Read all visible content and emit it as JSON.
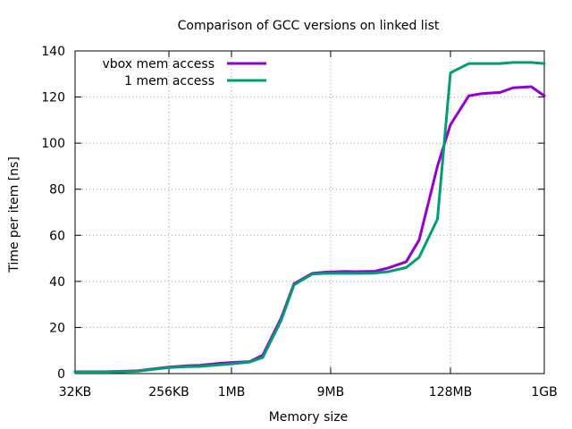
{
  "chart_data": {
    "type": "line",
    "title": "Comparison of GCC versions on linked list",
    "xlabel": "Memory size",
    "ylabel": "Time per item [ns]",
    "x_scale": "log2",
    "xlim": [
      "32KB",
      "1GB"
    ],
    "ylim": [
      0,
      140
    ],
    "grid": true,
    "legend_position": "top-left",
    "x_ticks": [
      {
        "label": "32KB",
        "bytes_kb": 32
      },
      {
        "label": "256KB",
        "bytes_kb": 256
      },
      {
        "label": "1MB",
        "bytes_kb": 1024
      },
      {
        "label": "9MB",
        "bytes_kb": 9216
      },
      {
        "label": "128MB",
        "bytes_kb": 131072
      },
      {
        "label": "1GB",
        "bytes_kb": 1048576
      }
    ],
    "y_ticks": [
      0,
      20,
      40,
      60,
      80,
      100,
      120,
      140
    ],
    "x_kb": [
      32,
      64,
      128,
      192,
      256,
      384,
      512,
      768,
      1024,
      1536,
      2048,
      3072,
      4096,
      6144,
      8192,
      12288,
      16384,
      24576,
      32768,
      49152,
      65536,
      98304,
      131072,
      196608,
      262144,
      393216,
      524288,
      786432,
      1048576
    ],
    "series": [
      {
        "name": "vbox mem access",
        "color": "#9400d3",
        "values": [
          0.8,
          0.8,
          1.2,
          2.2,
          2.8,
          3.4,
          3.6,
          4.4,
          4.8,
          5.2,
          8.0,
          24.0,
          39.0,
          43.5,
          44.0,
          44.3,
          44.2,
          44.4,
          45.8,
          48.5,
          58.0,
          90.0,
          108.0,
          120.5,
          121.5,
          122.0,
          124.0,
          124.5,
          120.5
        ]
      },
      {
        "name": "1 mem access",
        "color": "#009e73",
        "values": [
          0.6,
          0.6,
          1.0,
          2.0,
          2.6,
          3.0,
          3.1,
          3.8,
          4.2,
          5.0,
          7.0,
          23.0,
          38.5,
          43.2,
          43.5,
          43.5,
          43.5,
          43.6,
          44.2,
          46.0,
          50.5,
          67.0,
          130.5,
          134.5,
          134.5,
          134.5,
          135.0,
          135.0,
          134.5
        ]
      }
    ]
  }
}
